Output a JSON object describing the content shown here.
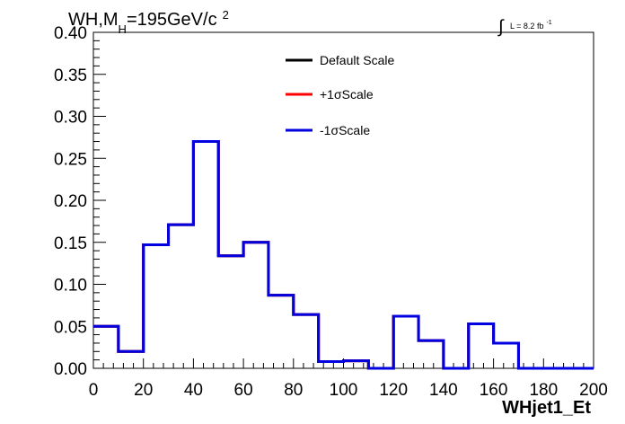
{
  "title": {
    "prefix": "WH,M",
    "subscript": "H",
    "suffix": "=195GeV/c",
    "superscript": "2"
  },
  "luminosity": {
    "integral_symbol": "∫",
    "text": "L = 8.2 fb",
    "superscript": "-1"
  },
  "chart_data": {
    "type": "line",
    "style": "step-histogram",
    "xlabel": "WHjet1_Et",
    "ylabel": "",
    "xlim": [
      0,
      200
    ],
    "ylim": [
      0,
      0.4
    ],
    "x_ticks": [
      "0",
      "20",
      "40",
      "60",
      "80",
      "100",
      "120",
      "140",
      "160",
      "180",
      "200"
    ],
    "y_ticks": [
      "0.00",
      "0.05",
      "0.10",
      "0.15",
      "0.20",
      "0.25",
      "0.30",
      "0.35",
      "0.40"
    ],
    "bin_edges": [
      0,
      10,
      20,
      30,
      40,
      50,
      60,
      70,
      80,
      90,
      100,
      110,
      120,
      130,
      140,
      150,
      160,
      170,
      180,
      190,
      200
    ],
    "grid": false,
    "legend_placement": "top-center",
    "series": [
      {
        "name": "Default Scale",
        "color": "#000000",
        "values": [
          0.05,
          0.02,
          0.147,
          0.171,
          0.27,
          0.134,
          0.15,
          0.087,
          0.064,
          0.008,
          0.009,
          0.0,
          0.062,
          0.033,
          0.0,
          0.053,
          0.03,
          0.0,
          0.0,
          0.0
        ]
      },
      {
        "name": "+1σScale",
        "color": "#ff0000",
        "values": [
          0.05,
          0.02,
          0.147,
          0.171,
          0.27,
          0.134,
          0.15,
          0.087,
          0.064,
          0.008,
          0.009,
          0.0,
          0.062,
          0.033,
          0.0,
          0.053,
          0.03,
          0.0,
          0.0,
          0.0
        ]
      },
      {
        "name": "-1σScale",
        "color": "#0000e0",
        "values": [
          0.05,
          0.02,
          0.147,
          0.171,
          0.27,
          0.134,
          0.15,
          0.087,
          0.064,
          0.008,
          0.009,
          0.0,
          0.062,
          0.033,
          0.0,
          0.053,
          0.03,
          0.0,
          0.0,
          0.0
        ]
      }
    ]
  }
}
